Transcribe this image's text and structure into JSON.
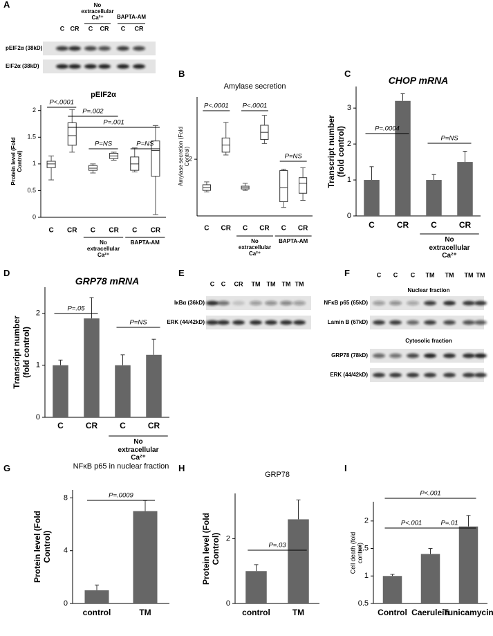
{
  "chart_data": [
    {
      "type": "box",
      "title": "pEIF2α",
      "y_label": "Protein level (Fold Control)",
      "categories": [
        "C",
        "CR",
        "C",
        "CR",
        "C",
        "CR"
      ],
      "group_labels": [
        "No extracellular Ca²⁺",
        "BAPTA-AM"
      ],
      "boxes": [
        {
          "min": 0.7,
          "q1": 0.93,
          "median": 1.0,
          "q3": 1.05,
          "max": 1.15
        },
        {
          "min": 1.22,
          "q1": 1.35,
          "median": 1.53,
          "q3": 1.77,
          "max": 2.02
        },
        {
          "min": 0.83,
          "q1": 0.88,
          "median": 0.92,
          "q3": 0.97,
          "max": 1.0
        },
        {
          "min": 1.07,
          "q1": 1.1,
          "median": 1.15,
          "q3": 1.2,
          "max": 1.22
        },
        {
          "min": 0.85,
          "q1": 0.88,
          "median": 1.0,
          "q3": 1.13,
          "max": 1.3
        },
        {
          "min": 0.05,
          "q1": 0.77,
          "median": 1.25,
          "q3": 1.43,
          "max": 1.72
        }
      ],
      "ylim": [
        0,
        2.1
      ],
      "yticks": [
        0,
        0.5,
        1,
        1.5,
        2
      ],
      "color": "#ffffff",
      "annotations": [
        "P<.0001",
        "P=.002",
        "P=.001",
        "P=NS",
        "P=NS"
      ]
    },
    {
      "type": "box",
      "label": "B",
      "title": "Amylase secretion",
      "y_label": "Amylase secretion (Fold Control)",
      "categories": [
        "C",
        "CR",
        "C",
        "CR",
        "C",
        "CR"
      ],
      "group_labels": [
        "No extracellular Ca²⁺",
        "BAPTA-AM"
      ],
      "boxes": [
        {
          "min": 0.85,
          "q1": 0.9,
          "median": 1.0,
          "q3": 1.1,
          "max": 1.2
        },
        {
          "min": 2.15,
          "q1": 2.25,
          "median": 2.5,
          "q3": 2.75,
          "max": 3.3
        },
        {
          "min": 0.9,
          "q1": 0.95,
          "median": 1.0,
          "q3": 1.05,
          "max": 1.15
        },
        {
          "min": 2.55,
          "q1": 2.7,
          "median": 2.95,
          "q3": 3.2,
          "max": 3.55
        },
        {
          "min": 0.3,
          "q1": 0.5,
          "median": 1.0,
          "q3": 1.6,
          "max": 1.65
        },
        {
          "min": 0.55,
          "q1": 0.8,
          "median": 1.15,
          "q3": 1.35,
          "max": 1.7
        }
      ],
      "ylim": [
        0,
        4.2
      ],
      "yticks": [
        2
      ],
      "color": "#ffffff",
      "annotations": [
        "P<.0001",
        "P<.0001",
        "P=NS"
      ]
    },
    {
      "type": "bar",
      "label": "C",
      "title": "CHOP mRNA",
      "y_label": "Transcript number (fold control)",
      "categories": [
        "C",
        "CR",
        "C",
        "CR"
      ],
      "group_labels": [
        "No extracellular Ca²⁺"
      ],
      "values": [
        1,
        3.2,
        1,
        1.5
      ],
      "errors": [
        0.37,
        0.2,
        0.15,
        0.3
      ],
      "color": "#666666",
      "ylim": [
        0,
        3.6
      ],
      "yticks": [
        0,
        1,
        2,
        3
      ],
      "annotations": [
        "P=.0004",
        "P=NS"
      ]
    },
    {
      "type": "bar",
      "label": "D",
      "title": "GRP78 mRNA",
      "y_label": "Transcript number (fold control)",
      "categories": [
        "C",
        "CR",
        "C",
        "CR"
      ],
      "group_labels": [
        "No extracellular Ca²⁺"
      ],
      "values": [
        1,
        1.9,
        1,
        1.2
      ],
      "errors": [
        0.1,
        0.4,
        0.2,
        0.3
      ],
      "color": "#666666",
      "ylim": [
        0,
        2.5
      ],
      "yticks": [
        0,
        1,
        2
      ],
      "annotations": [
        "P=.05",
        "P=NS"
      ]
    },
    {
      "type": "bar",
      "label": "G",
      "title": "NFκB p65 in nuclear fraction",
      "y_label": "Protein level (Fold Control)",
      "categories": [
        "control",
        "TM"
      ],
      "values": [
        1,
        7
      ],
      "errors": [
        0.4,
        0.8
      ],
      "color": "#666666",
      "ylim": [
        0,
        8.6
      ],
      "yticks": [
        0,
        4,
        8
      ],
      "annotations": [
        "P=.0009"
      ]
    },
    {
      "type": "bar",
      "label": "H",
      "title": "GRP78",
      "y_label": "Protein level (Fold Control)",
      "categories": [
        "control",
        "TM"
      ],
      "values": [
        1,
        2.6
      ],
      "errors": [
        0.2,
        0.6
      ],
      "color": "#666666",
      "ylim": [
        0,
        3.4
      ],
      "yticks": [
        0,
        2
      ],
      "annotations": [
        "P=.03"
      ]
    },
    {
      "type": "bar",
      "label": "I",
      "y_label": "Cell death (fold control)",
      "categories": [
        "Control",
        "Caerulein",
        "Tunicamycin"
      ],
      "values": [
        1,
        1.4,
        1.9
      ],
      "errors": [
        0.03,
        0.1,
        0.2
      ],
      "color": "#666666",
      "ylim": [
        0.5,
        2.35
      ],
      "yticks": [
        0.5,
        1,
        1.5,
        2
      ],
      "annotations": [
        "P<.001",
        "P<.001",
        "P=.01"
      ]
    }
  ],
  "blots": [
    {
      "label": "A",
      "lanes": [
        "C",
        "CR",
        "C",
        "CR",
        "C",
        "CR"
      ],
      "groups": [
        "No extracellular Ca²⁺",
        "BAPTA-AM"
      ],
      "rows": [
        "pEIF2α (38kD)",
        "EIF2α (38kD)"
      ]
    },
    {
      "label": "E",
      "lanes": [
        "C",
        "C",
        "CR",
        "TM",
        "TM",
        "TM",
        "TM"
      ],
      "rows": [
        "IκBα (36kD)",
        "ERK (44/42kD)"
      ]
    },
    {
      "label": "F",
      "lanes": [
        "C",
        "C",
        "C",
        "TM",
        "TM",
        "TM",
        "TM"
      ],
      "sections": [
        {
          "title": "Nuclear fraction",
          "rows": [
            "NFκB p65 (65kD)",
            "Lamin B (67kD)"
          ]
        },
        {
          "title": "Cytosolic fraction",
          "rows": [
            "GRP78 (78kD)",
            "ERK (44/42kD)"
          ]
        }
      ]
    }
  ]
}
